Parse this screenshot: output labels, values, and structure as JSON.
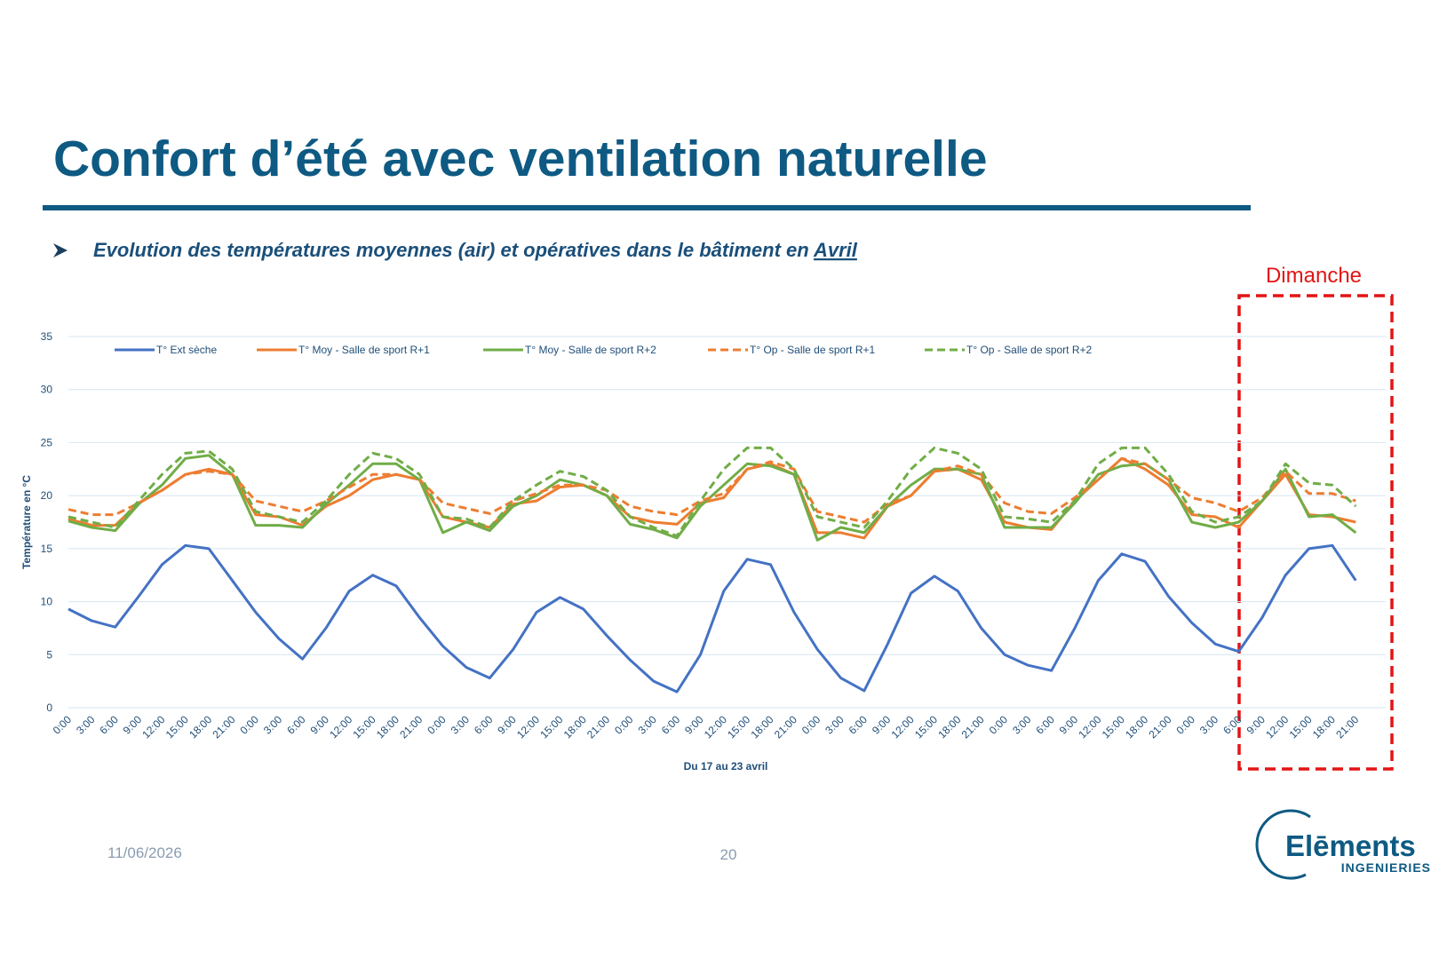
{
  "header": {
    "title": "Confort d’été avec ventilation naturelle",
    "subtitle": "Evolution des températures moyennes (air) et opératives dans le bâtiment en ",
    "subtitle_link": "Avril"
  },
  "annotation": "Dimanche",
  "footer": {
    "date": "11/06/2026",
    "page": "20"
  },
  "logo": {
    "name": "Elēments",
    "tagline": "INGENIERIES"
  },
  "chart_data": {
    "type": "line",
    "ylabel": "Température en °C",
    "xlabel": "Du 17 au 23 avril",
    "categories": [
      "0:00",
      "3:00",
      "6:00",
      "9:00",
      "12:00",
      "15:00",
      "18:00",
      "21:00",
      "0:00",
      "3:00",
      "6:00",
      "9:00",
      "12:00",
      "15:00",
      "18:00",
      "21:00",
      "0:00",
      "3:00",
      "6:00",
      "9:00",
      "12:00",
      "15:00",
      "18:00",
      "21:00",
      "0:00",
      "3:00",
      "6:00",
      "9:00",
      "12:00",
      "15:00",
      "18:00",
      "21:00",
      "0:00",
      "3:00",
      "6:00",
      "9:00",
      "12:00",
      "15:00",
      "18:00",
      "21:00",
      "0:00",
      "3:00",
      "6:00",
      "9:00",
      "12:00",
      "15:00",
      "18:00",
      "21:00",
      "0:00",
      "3:00",
      "6:00",
      "9:00",
      "12:00",
      "15:00",
      "18:00",
      "21:00"
    ],
    "ylim": [
      0,
      35
    ],
    "yticks": [
      0,
      5,
      10,
      15,
      20,
      25,
      30,
      35
    ],
    "grid": true,
    "legend": "top",
    "series": [
      {
        "name": "T° Ext sèche",
        "color": "#4472c4",
        "style": "solid",
        "values": [
          9.3,
          8.2,
          7.6,
          10.5,
          13.5,
          15.3,
          15.0,
          12.0,
          9.0,
          6.5,
          4.6,
          7.5,
          11.0,
          12.5,
          11.5,
          8.5,
          5.8,
          3.8,
          2.8,
          5.5,
          9.0,
          10.4,
          9.3,
          6.8,
          4.5,
          2.5,
          1.5,
          5.0,
          11.0,
          14.0,
          13.5,
          9.0,
          5.5,
          2.8,
          1.6,
          6.0,
          10.8,
          12.4,
          11.0,
          7.5,
          5.0,
          4.0,
          3.5,
          7.5,
          12.0,
          14.5,
          13.8,
          10.5,
          8.0,
          6.0,
          5.3,
          8.5,
          12.5,
          15.0,
          15.3,
          12.0
        ]
      },
      {
        "name": "T° Moy - Salle de sport R+1",
        "color": "#ed7d31",
        "style": "solid",
        "values": [
          17.8,
          17.2,
          17.2,
          19.3,
          20.5,
          22.0,
          22.5,
          22.0,
          18.2,
          18.0,
          17.2,
          19.0,
          20.0,
          21.5,
          22.0,
          21.5,
          18.0,
          17.5,
          17.0,
          19.2,
          19.5,
          20.8,
          21.0,
          20.0,
          18.0,
          17.5,
          17.3,
          19.3,
          19.8,
          22.5,
          23.0,
          22.0,
          16.5,
          16.5,
          16.0,
          19.0,
          20.0,
          22.3,
          22.5,
          21.5,
          17.5,
          17.0,
          16.8,
          19.5,
          21.5,
          23.5,
          22.5,
          21.0,
          18.2,
          18.0,
          17.0,
          19.5,
          22.0,
          18.2,
          18.0,
          17.5
        ]
      },
      {
        "name": "T° Moy - Salle de sport R+2",
        "color": "#70ad47",
        "style": "solid",
        "values": [
          17.6,
          17.0,
          16.7,
          19.2,
          21.0,
          23.5,
          23.8,
          22.0,
          17.2,
          17.2,
          17.0,
          19.2,
          21.0,
          23.0,
          23.0,
          21.5,
          16.5,
          17.5,
          16.7,
          19.0,
          20.0,
          21.5,
          21.0,
          20.0,
          17.3,
          16.8,
          16.0,
          19.0,
          21.0,
          23.0,
          22.8,
          22.0,
          15.8,
          17.0,
          16.5,
          19.0,
          21.0,
          22.5,
          22.5,
          22.0,
          17.0,
          17.0,
          17.0,
          19.3,
          22.0,
          22.8,
          23.0,
          21.5,
          17.5,
          17.0,
          17.5,
          19.5,
          22.5,
          18.0,
          18.2,
          16.5
        ]
      },
      {
        "name": "T° Op - Salle de sport R+1",
        "color": "#ed7d31",
        "style": "dashed",
        "values": [
          18.7,
          18.2,
          18.2,
          19.3,
          20.5,
          22.0,
          22.3,
          22.0,
          19.5,
          19.0,
          18.5,
          19.5,
          20.8,
          22.0,
          22.0,
          21.5,
          19.3,
          18.8,
          18.3,
          19.5,
          20.2,
          21.0,
          21.0,
          20.5,
          19.0,
          18.5,
          18.2,
          19.5,
          20.2,
          22.5,
          23.2,
          22.5,
          18.5,
          18.0,
          17.5,
          19.2,
          20.0,
          22.3,
          22.8,
          22.0,
          19.3,
          18.5,
          18.3,
          19.8,
          21.5,
          23.5,
          23.0,
          21.5,
          19.8,
          19.3,
          18.5,
          19.8,
          22.3,
          20.2,
          20.2,
          19.5
        ]
      },
      {
        "name": "T° Op - Salle de sport R+2",
        "color": "#70ad47",
        "style": "dashed",
        "values": [
          18.0,
          17.5,
          17.0,
          19.5,
          22.0,
          24.0,
          24.2,
          22.5,
          18.5,
          18.0,
          17.5,
          19.5,
          22.0,
          24.0,
          23.5,
          22.0,
          18.0,
          17.8,
          17.0,
          19.5,
          21.0,
          22.3,
          21.8,
          20.5,
          18.0,
          17.0,
          16.2,
          19.5,
          22.5,
          24.5,
          24.5,
          22.5,
          18.0,
          17.5,
          17.0,
          19.5,
          22.5,
          24.5,
          24.0,
          22.5,
          18.0,
          17.8,
          17.5,
          19.5,
          23.0,
          24.5,
          24.5,
          22.0,
          18.5,
          17.5,
          18.0,
          19.5,
          23.0,
          21.2,
          21.0,
          19.0
        ]
      }
    ]
  }
}
